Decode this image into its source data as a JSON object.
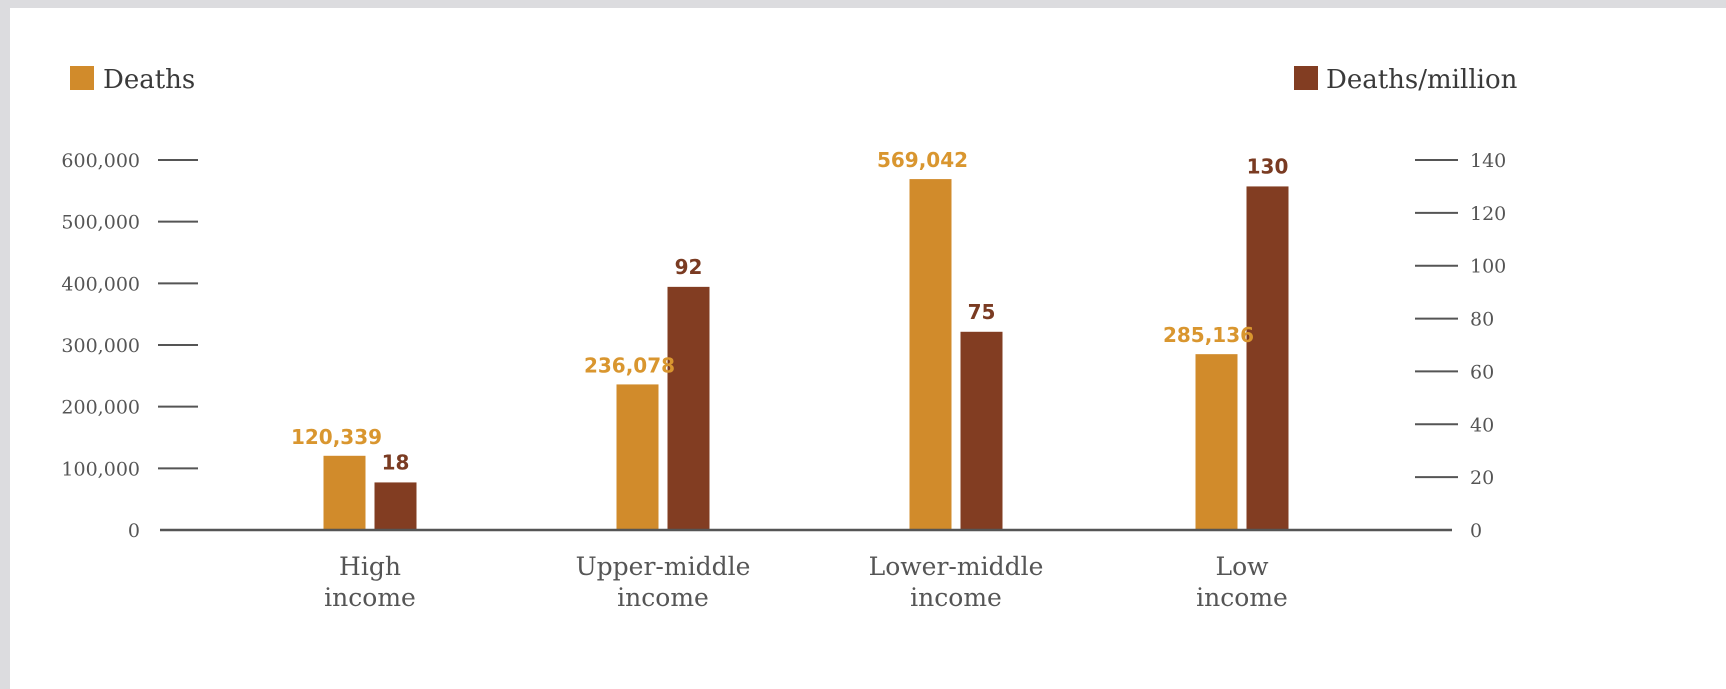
{
  "chart_data": {
    "type": "bar",
    "categories": [
      [
        "High",
        "income"
      ],
      [
        "Upper-middle",
        "income"
      ],
      [
        "Lower-middle",
        "income"
      ],
      [
        "Low",
        "income"
      ]
    ],
    "series": [
      {
        "name": "Deaths",
        "axis": "left",
        "values": [
          120339,
          236078,
          569042,
          285136
        ],
        "labels": [
          "120,339",
          "236,078",
          "569,042",
          "285,136"
        ]
      },
      {
        "name": "Deaths/million",
        "axis": "right",
        "values": [
          18,
          92,
          75,
          130
        ],
        "labels": [
          "18",
          "92",
          "75",
          "130"
        ]
      }
    ],
    "ylim_left": [
      0,
      600000
    ],
    "ylim_right": [
      0,
      140
    ],
    "yticks_left": [
      "0",
      "100,000",
      "200,000",
      "300,000",
      "400,000",
      "500,000",
      "600,000"
    ],
    "yticks_right": [
      "0",
      "20",
      "40",
      "60",
      "80",
      "100",
      "120",
      "140"
    ],
    "legend": {
      "left": "Deaths",
      "right": "Deaths/million"
    },
    "colors": {
      "deaths": "#d18b2b",
      "deaths_per_million": "#823d22",
      "deaths_label": "#d9962f",
      "per_million_label": "#7a3b22",
      "axis": "#555555"
    }
  }
}
